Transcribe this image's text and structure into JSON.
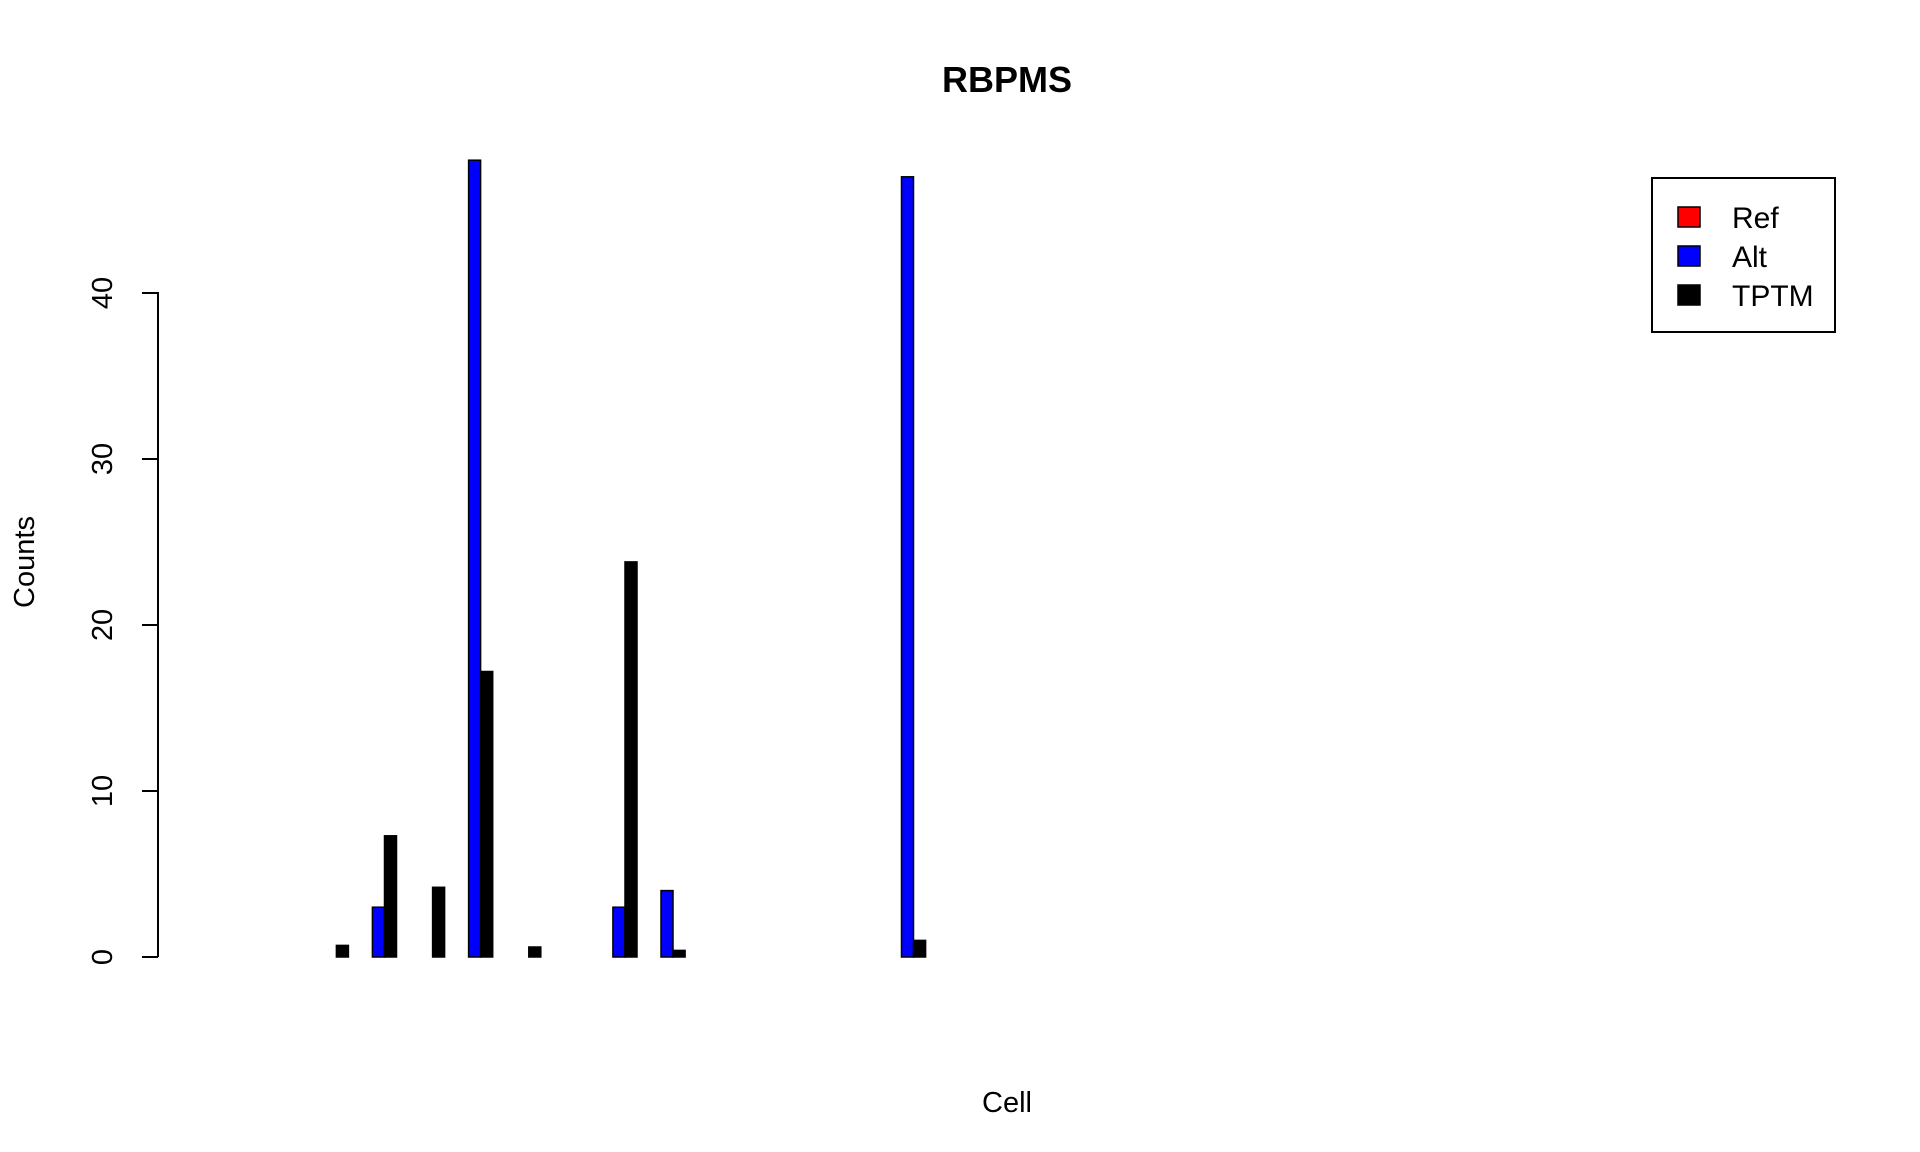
{
  "chart_data": {
    "type": "bar",
    "title": "RBPMS",
    "xlabel": "Cell",
    "ylabel": "Counts",
    "ylim": [
      0,
      48
    ],
    "yticks": [
      0,
      10,
      20,
      30,
      40
    ],
    "grid": false,
    "legend_position": "top-right",
    "n_groups": 20,
    "series": [
      {
        "name": "Ref",
        "color": "#ff0000",
        "values": [
          0,
          0,
          0,
          0,
          0,
          0,
          0,
          0,
          0,
          0,
          0,
          0,
          0,
          0,
          0,
          0,
          0,
          0,
          0,
          0
        ]
      },
      {
        "name": "Alt",
        "color": "#0000ff",
        "values": [
          null,
          null,
          null,
          0,
          3,
          0,
          48,
          0,
          null,
          3,
          4,
          null,
          0,
          null,
          null,
          47,
          null,
          null,
          0,
          null
        ]
      },
      {
        "name": "TPTM",
        "color": "#000000",
        "values": [
          null,
          null,
          null,
          0.7,
          7.3,
          4.2,
          17.2,
          0.6,
          null,
          23.8,
          0.4,
          null,
          0,
          null,
          null,
          1.0,
          null,
          null,
          0,
          null
        ]
      }
    ]
  }
}
